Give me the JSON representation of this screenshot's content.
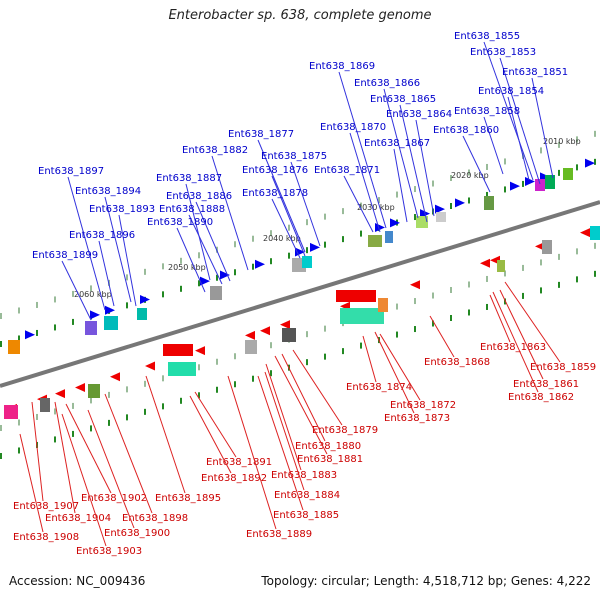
{
  "title": "Enterobacter sp. 638, complete genome",
  "footer": {
    "accession": "Accession: NC_009436",
    "summary": "Topology: circular; Length: 4,518,712 bp; Genes: 4,222"
  },
  "colors": {
    "forward_strand": "#0000ee",
    "reverse_strand": "#ee0000",
    "axis": "#777777",
    "tick_marks": "#228822"
  },
  "kbp_labels": [
    "2010 kbp",
    "2020 kbp",
    "2030 kbp",
    "2040 kbp",
    "2050 kbp",
    "2060 kbp"
  ],
  "top_genes": [
    "Ent638_1855",
    "Ent638_1853",
    "Ent638_1851",
    "Ent638_1854",
    "Ent638_1869",
    "Ent638_1866",
    "Ent638_1865",
    "Ent638_1864",
    "Ent638_1858",
    "Ent638_1870",
    "Ent638_1860",
    "Ent638_1877",
    "Ent638_1867",
    "Ent638_1882",
    "Ent638_1875",
    "Ent638_1871",
    "Ent638_1876",
    "Ent638_1897",
    "Ent638_1887",
    "Ent638_1894",
    "Ent638_1886",
    "Ent638_1878",
    "Ent638_1893",
    "Ent638_1888",
    "Ent638_1890",
    "Ent638_1896",
    "Ent638_1899"
  ],
  "bottom_genes": [
    "Ent638_1863",
    "Ent638_1859",
    "Ent638_1868",
    "Ent638_1861",
    "Ent638_1862",
    "Ent638_1874",
    "Ent638_1872",
    "Ent638_1873",
    "Ent638_1879",
    "Ent638_1880",
    "Ent638_1881",
    "Ent638_1891",
    "Ent638_1883",
    "Ent638_1892",
    "Ent638_1884",
    "Ent638_1895",
    "Ent638_1885",
    "Ent638_1902",
    "Ent638_1907",
    "Ent638_1898",
    "Ent638_1904",
    "Ent638_1900",
    "Ent638_1889",
    "Ent638_1908",
    "Ent638_1903"
  ]
}
